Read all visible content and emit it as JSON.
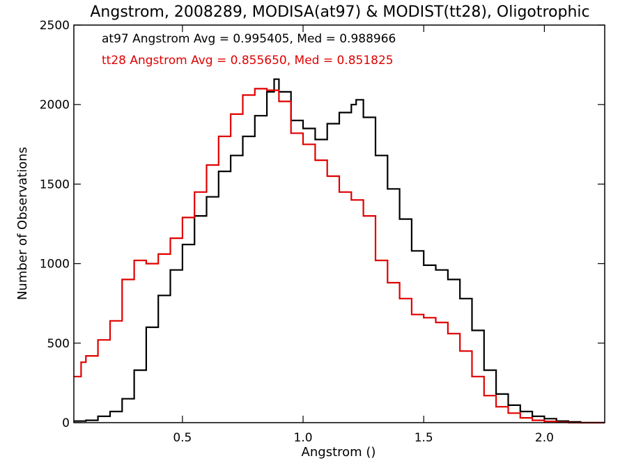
{
  "chart_data": {
    "type": "line",
    "title": "Angstrom, 2008289, MODISA(at97) & MODIST(tt28), Oligotrophic",
    "xlabel": "Angstrom ()",
    "ylabel": "Number of Observations",
    "xlim": [
      0.05,
      2.25
    ],
    "ylim": [
      0,
      2500
    ],
    "xticks": [
      0.5,
      1.0,
      1.5,
      2.0
    ],
    "xtick_labels": [
      "0.5",
      "1.0",
      "1.5",
      "2.0"
    ],
    "yticks": [
      0,
      500,
      1000,
      1500,
      2000,
      2500
    ],
    "ytick_labels": [
      "0",
      "500",
      "1000",
      "1500",
      "2000",
      "2500"
    ],
    "grid": false,
    "legend_position": "top-left",
    "annotations": [
      {
        "text": "at97 Angstrom Avg = 0.995405, Med = 0.988966",
        "color": "#000000"
      },
      {
        "text": "tt28 Angstrom Avg = 0.855650, Med = 0.851825",
        "color": "#e00000"
      }
    ],
    "series": [
      {
        "color": "#000000",
        "step": true,
        "x": [
          0.05,
          0.1,
          0.15,
          0.2,
          0.25,
          0.3,
          0.35,
          0.4,
          0.45,
          0.5,
          0.55,
          0.6,
          0.65,
          0.7,
          0.75,
          0.8,
          0.85,
          0.88,
          0.9,
          0.95,
          1.0,
          1.05,
          1.1,
          1.15,
          1.2,
          1.22,
          1.25,
          1.3,
          1.35,
          1.4,
          1.45,
          1.5,
          1.55,
          1.6,
          1.65,
          1.7,
          1.75,
          1.8,
          1.85,
          1.9,
          1.95,
          2.0,
          2.05,
          2.1,
          2.15,
          2.2,
          2.25
        ],
        "y": [
          10,
          15,
          40,
          70,
          150,
          330,
          600,
          800,
          960,
          1120,
          1300,
          1420,
          1580,
          1680,
          1800,
          1930,
          2080,
          2160,
          2080,
          1900,
          1850,
          1780,
          1880,
          1950,
          2000,
          2030,
          1920,
          1680,
          1470,
          1280,
          1080,
          990,
          960,
          900,
          780,
          580,
          330,
          180,
          110,
          70,
          40,
          25,
          10,
          5,
          0,
          0,
          0
        ]
      },
      {
        "color": "#e00000",
        "step": true,
        "x": [
          0.05,
          0.08,
          0.1,
          0.15,
          0.2,
          0.25,
          0.3,
          0.35,
          0.4,
          0.45,
          0.5,
          0.55,
          0.6,
          0.65,
          0.7,
          0.75,
          0.8,
          0.85,
          0.9,
          0.95,
          1.0,
          1.05,
          1.1,
          1.15,
          1.2,
          1.25,
          1.3,
          1.35,
          1.4,
          1.45,
          1.5,
          1.55,
          1.6,
          1.65,
          1.7,
          1.75,
          1.8,
          1.85,
          1.9,
          1.95,
          2.0,
          2.05,
          2.1,
          2.15,
          2.2,
          2.25
        ],
        "y": [
          290,
          380,
          420,
          520,
          640,
          900,
          1020,
          1000,
          1060,
          1160,
          1290,
          1450,
          1620,
          1800,
          1940,
          2060,
          2100,
          2090,
          2020,
          1820,
          1750,
          1650,
          1550,
          1450,
          1400,
          1300,
          1020,
          880,
          780,
          680,
          660,
          630,
          560,
          450,
          290,
          170,
          100,
          60,
          30,
          15,
          8,
          3,
          0,
          0,
          0,
          0
        ]
      }
    ]
  }
}
